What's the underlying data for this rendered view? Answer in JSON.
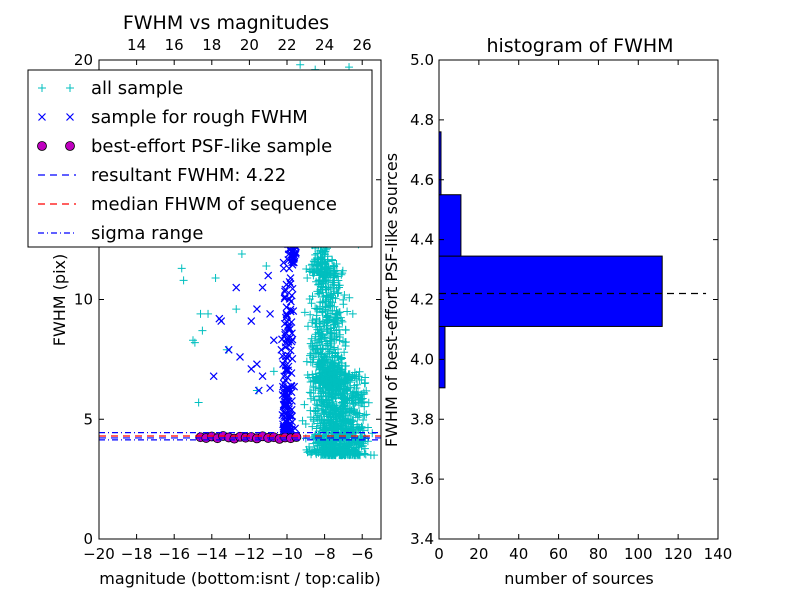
{
  "chart_data": [
    {
      "type": "scatter",
      "title": "FWHM vs magnitudes",
      "xlabel": "magnitude (bottom:isnt / top:calib)",
      "ylabel": "FWHM (pix)",
      "xlim": [
        -20,
        -5
      ],
      "ylim": [
        0,
        20
      ],
      "xticks": [
        -20,
        -18,
        -16,
        -14,
        -12,
        -10,
        -8,
        -6
      ],
      "xtick_labels": [
        "−20",
        "−18",
        "−16",
        "−14",
        "−12",
        "−10",
        "−8",
        "−6"
      ],
      "yticks": [
        0,
        5,
        10,
        15,
        20
      ],
      "ytick_labels": [
        "0",
        "5",
        "10",
        "15",
        "20"
      ],
      "top_axis": {
        "ticks": [
          14,
          16,
          18,
          20,
          22,
          24,
          26
        ],
        "tick_labels": [
          "14",
          "16",
          "18",
          "20",
          "22",
          "24",
          "26"
        ],
        "offset": 32
      },
      "series": [
        {
          "name": "all sample",
          "marker": "plus",
          "color": "#00bfbf",
          "points": [
            [
              -15.6,
              11.3
            ],
            [
              -15.5,
              10.8
            ],
            [
              -15.0,
              8.3
            ],
            [
              -14.9,
              8.2
            ],
            [
              -14.7,
              5.7
            ],
            [
              -14.6,
              9.4
            ],
            [
              -14.5,
              8.7
            ],
            [
              -14.2,
              9.4
            ],
            [
              -13.8,
              10.9
            ],
            [
              -13.5,
              12.4
            ],
            [
              -13.2,
              7.9
            ],
            [
              -12.7,
              9.6
            ],
            [
              -11.6,
              6.2
            ],
            [
              -11.1,
              11.4
            ],
            [
              -10.7,
              7.0
            ],
            [
              -12.4,
              11.9
            ],
            [
              -11.9,
              12.6
            ],
            [
              -10.4,
              13.0
            ],
            [
              -9.3,
              19.8
            ],
            [
              -8.5,
              19.6
            ],
            [
              -7.4,
              19.3
            ],
            [
              -6.7,
              19.7
            ],
            [
              -6.2,
              12.3
            ],
            [
              -5.9,
              12.6
            ],
            [
              -6.5,
              9.4
            ],
            [
              -9.0,
              4.2
            ],
            [
              -8.5,
              4.3
            ],
            [
              -8.0,
              4.2
            ],
            [
              -7.5,
              4.3
            ],
            [
              -7.0,
              4.2
            ],
            [
              -6.5,
              4.1
            ],
            [
              -6.0,
              4.3
            ]
          ],
          "dense_regions": [
            {
              "x": [
                -9.4,
                -5.2
              ],
              "y": [
                3.5,
                7.0
              ],
              "count": 900
            },
            {
              "x": [
                -9.2,
                -6.4
              ],
              "y": [
                6.5,
                11.5
              ],
              "count": 500
            },
            {
              "x": [
                -9.0,
                -7.3
              ],
              "y": [
                11.0,
                17.5
              ],
              "count": 220
            }
          ]
        },
        {
          "name": "sample for rough FWHM",
          "marker": "x",
          "color": "#0000ff",
          "points": [
            [
              -13.6,
              9.2
            ],
            [
              -13.5,
              9.1
            ],
            [
              -13.1,
              7.9
            ],
            [
              -12.7,
              10.5
            ],
            [
              -12.2,
              12.7
            ],
            [
              -11.9,
              9.1
            ],
            [
              -11.6,
              9.6
            ],
            [
              -11.3,
              10.5
            ],
            [
              -11.0,
              11.0
            ],
            [
              -10.9,
              9.4
            ],
            [
              -10.7,
              8.3
            ],
            [
              -10.5,
              13.1
            ],
            [
              -10.3,
              7.9
            ],
            [
              -13.9,
              6.8
            ],
            [
              -12.5,
              7.6
            ],
            [
              -11.9,
              7.1
            ],
            [
              -11.6,
              7.3
            ],
            [
              -11.3,
              6.8
            ],
            [
              -11.5,
              6.2
            ],
            [
              -10.9,
              6.3
            ]
          ],
          "dense_regions": [
            {
              "x": [
                -10.4,
                -9.5
              ],
              "y": [
                4.5,
                12.5
              ],
              "count": 150
            },
            {
              "x": [
                -9.9,
                -9.4
              ],
              "y": [
                11.5,
                15.5
              ],
              "count": 45
            }
          ]
        },
        {
          "name": "best-effort PSF-like sample",
          "marker": "circle",
          "color": "#bf00bf",
          "points": [
            [
              -14.6,
              4.25
            ],
            [
              -14.3,
              4.22
            ],
            [
              -14.0,
              4.28
            ],
            [
              -13.7,
              4.21
            ],
            [
              -13.4,
              4.3
            ],
            [
              -13.1,
              4.24
            ],
            [
              -12.8,
              4.19
            ],
            [
              -12.5,
              4.27
            ],
            [
              -12.2,
              4.23
            ],
            [
              -11.9,
              4.26
            ],
            [
              -11.6,
              4.2
            ],
            [
              -11.3,
              4.29
            ],
            [
              -11.0,
              4.22
            ],
            [
              -10.7,
              4.25
            ],
            [
              -10.4,
              4.18
            ],
            [
              -10.1,
              4.24
            ],
            [
              -9.8,
              4.21
            ],
            [
              -9.5,
              4.26
            ]
          ]
        },
        {
          "name": "resultant FWHM: 4.22",
          "line": "dashed",
          "color": "#0000ff",
          "y": 4.22
        },
        {
          "name": "median FHWM of sequence",
          "line": "dashed",
          "color": "#ff0000",
          "y": 4.3
        },
        {
          "name": "sigma range",
          "line": "dashdot",
          "color": "#0000ff",
          "y_values": [
            4.14,
            4.44
          ]
        }
      ],
      "legend": "top-left"
    },
    {
      "type": "bar",
      "orientation": "horizontal",
      "title": "histogram of FWHM",
      "xlabel": "number of sources",
      "ylabel": "FWHM of best-effort PSF-like sources",
      "xlim": [
        0,
        140
      ],
      "ylim": [
        3.4,
        5.0
      ],
      "xticks": [
        0,
        20,
        40,
        60,
        80,
        100,
        120,
        140
      ],
      "xtick_labels": [
        "0",
        "20",
        "40",
        "60",
        "80",
        "100",
        "120",
        "140"
      ],
      "yticks": [
        3.4,
        3.6,
        3.8,
        4.0,
        4.2,
        4.4,
        4.6,
        4.8,
        5.0
      ],
      "ytick_labels": [
        "3.4",
        "3.6",
        "3.8",
        "4.0",
        "4.2",
        "4.4",
        "4.6",
        "4.8",
        "5.0"
      ],
      "bars": [
        {
          "y_low": 3.905,
          "y_high": 4.11,
          "value": 3
        },
        {
          "y_low": 4.11,
          "y_high": 4.345,
          "value": 112
        },
        {
          "y_low": 4.345,
          "y_high": 4.55,
          "value": 11
        },
        {
          "y_low": 4.55,
          "y_high": 4.76,
          "value": 1
        }
      ],
      "bar_color": "#0000ff",
      "reference_line": {
        "y": 4.22,
        "x_end": 134,
        "style": "dashed",
        "color": "#000000"
      }
    }
  ]
}
